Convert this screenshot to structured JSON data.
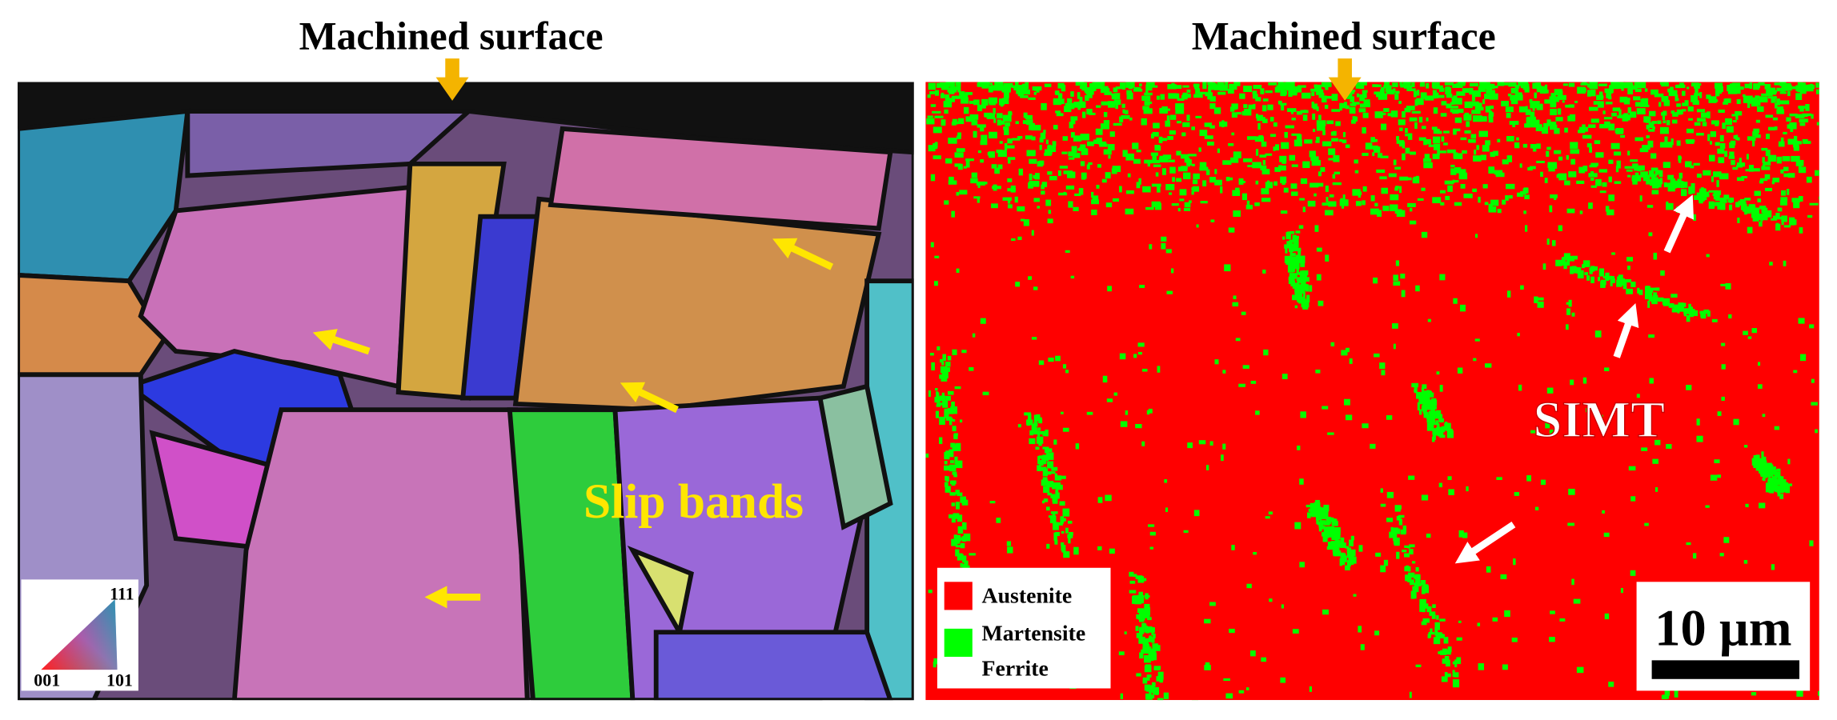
{
  "left_panel": {
    "title": "Machined surface",
    "annotation": "Slip bands",
    "ipf_legend": {
      "top": "111",
      "left": "001",
      "right": "101"
    }
  },
  "right_panel": {
    "title": "Machined surface",
    "annotation": "SIMT",
    "legend": [
      "Austenite",
      "Martensite",
      "Ferrite"
    ],
    "scale_bar": "10 µm"
  }
}
